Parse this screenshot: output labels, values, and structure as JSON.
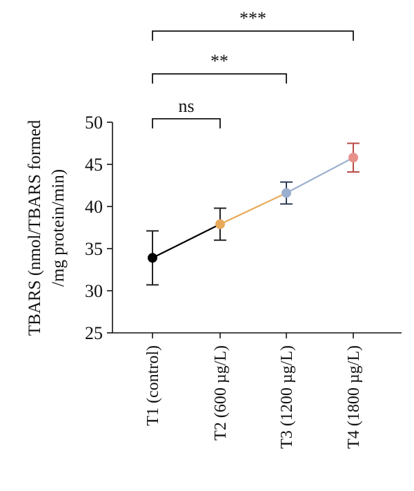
{
  "chart_data": {
    "type": "line",
    "categories": [
      "T1 (control)",
      "T2 (600 µg/L)",
      "T3 (1200 µg/L)",
      "T4 (1800 µg/L)"
    ],
    "values": [
      33.9,
      37.9,
      41.6,
      45.8
    ],
    "error": [
      3.2,
      1.9,
      1.3,
      1.7
    ],
    "point_colors": [
      "#000000",
      "#e8a95a",
      "#9bb0cf",
      "#e8908a"
    ],
    "errorbar_colors": [
      "#222222",
      "#222222",
      "#2e3b55",
      "#b84a44"
    ],
    "segment_colors": [
      "#000000",
      "#e8a95a",
      "#9bb0cf"
    ],
    "ylabel_lines": [
      "TBARS (nmol/TBARS formed",
      "/mg protein/min)"
    ],
    "ylim": [
      25,
      50
    ],
    "yticks": [
      25,
      30,
      35,
      40,
      45,
      50
    ],
    "grid": false,
    "significance": [
      {
        "from": 0,
        "to": 1,
        "label": "ns"
      },
      {
        "from": 0,
        "to": 2,
        "label": "**"
      },
      {
        "from": 0,
        "to": 3,
        "label": "***"
      }
    ]
  }
}
